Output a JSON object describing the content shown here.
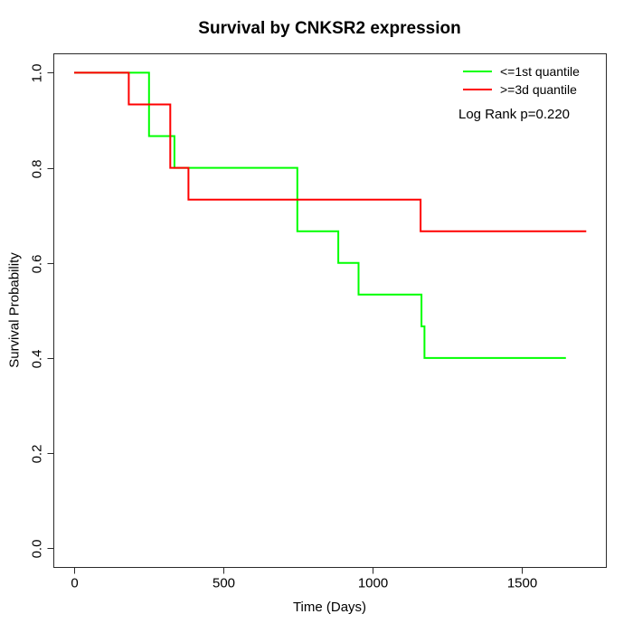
{
  "title": "Survival by CNKSR2 expression",
  "axes": {
    "x": {
      "label": "Time (Days)",
      "ticks": [
        {
          "value": 0,
          "label": "0"
        },
        {
          "value": 500,
          "label": "500"
        },
        {
          "value": 1000,
          "label": "1000"
        },
        {
          "value": 1500,
          "label": "1500"
        }
      ]
    },
    "y": {
      "label": "Survival Probability",
      "ticks": [
        {
          "value": 0.0,
          "label": "0.0"
        },
        {
          "value": 0.2,
          "label": "0.2"
        },
        {
          "value": 0.4,
          "label": "0.4"
        },
        {
          "value": 0.6,
          "label": "0.6"
        },
        {
          "value": 0.8,
          "label": "0.8"
        },
        {
          "value": 1.0,
          "label": "1.0"
        }
      ]
    }
  },
  "legend": {
    "items": [
      {
        "label": "<=1st quantile",
        "color": "#00ff00"
      },
      {
        "label": ">=3d quantile",
        "color": "#ff0000"
      }
    ]
  },
  "annotation": {
    "log_rank": "Log Rank p=0.220"
  },
  "colors": {
    "green_series": "#00ff00",
    "red_series": "#ff0000",
    "axis": "#2a2a2a",
    "text": "#000000"
  },
  "chart_data": {
    "type": "line",
    "subtype": "kaplan-meier-step",
    "title": "Survival by CNKSR2 expression",
    "xlabel": "Time (Days)",
    "ylabel": "Survival Probability",
    "xlim": [
      0,
      1750
    ],
    "ylim": [
      0,
      1
    ],
    "grid": false,
    "legend_position": "top-right",
    "annotations": [
      "Log Rank p=0.220"
    ],
    "series": [
      {
        "name": "<=1st quantile",
        "color": "#00ff00",
        "points": [
          [
            0,
            1.0
          ],
          [
            251,
            1.0
          ],
          [
            251,
            0.8667
          ],
          [
            336,
            0.8667
          ],
          [
            336,
            0.8
          ],
          [
            748,
            0.8
          ],
          [
            748,
            0.6667
          ],
          [
            885,
            0.6667
          ],
          [
            885,
            0.6
          ],
          [
            953,
            0.6
          ],
          [
            953,
            0.5333
          ],
          [
            1164,
            0.5333
          ],
          [
            1164,
            0.4667
          ],
          [
            1174,
            0.4667
          ],
          [
            1174,
            0.4
          ],
          [
            1648,
            0.4
          ]
        ]
      },
      {
        "name": ">=3d quantile",
        "color": "#ff0000",
        "points": [
          [
            0,
            1.0
          ],
          [
            183,
            1.0
          ],
          [
            183,
            0.9333
          ],
          [
            322,
            0.9333
          ],
          [
            322,
            0.8
          ],
          [
            383,
            0.8
          ],
          [
            383,
            0.7333
          ],
          [
            1161,
            0.7333
          ],
          [
            1161,
            0.6667
          ],
          [
            1716,
            0.6667
          ]
        ]
      }
    ]
  }
}
